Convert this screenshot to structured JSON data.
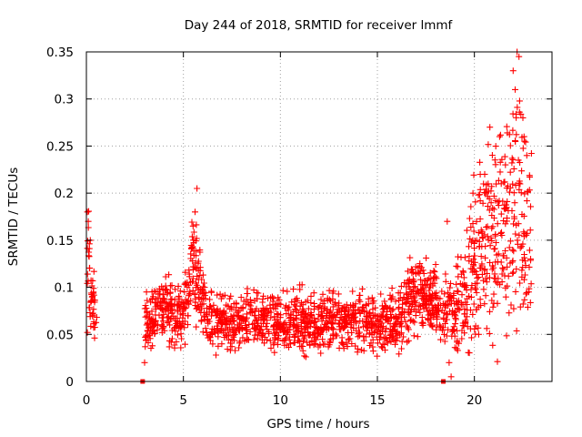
{
  "chart_data": {
    "type": "scatter",
    "title": "Day 244 of 2018, SRMTID for receiver lmmf",
    "xlabel": "GPS time / hours",
    "ylabel": "SRMTID / TECUs",
    "xlim": [
      0,
      24
    ],
    "ylim": [
      0,
      0.35
    ],
    "xticks": [
      0,
      5,
      10,
      15,
      20
    ],
    "yticks": [
      0,
      0.05,
      0.1,
      0.15,
      0.2,
      0.25,
      0.3,
      0.35
    ],
    "xtick_labels": [
      "0",
      "5",
      "10",
      "15",
      "20"
    ],
    "ytick_labels": [
      "0",
      "0.05",
      "0.1",
      "0.15",
      "0.2",
      "0.25",
      "0.3",
      "0.35"
    ],
    "grid": true,
    "marker": "+",
    "color": "#ff0000",
    "zero_markers_x": [
      2.9,
      18.4
    ],
    "series": [
      {
        "name": "SRMTID",
        "profile": [
          [
            0.0,
            0.08
          ],
          [
            0.1,
            0.13
          ],
          [
            0.2,
            0.09
          ],
          [
            0.5,
            0.07
          ],
          [
            3.0,
            0.06
          ],
          [
            3.5,
            0.07
          ],
          [
            4.0,
            0.08
          ],
          [
            4.5,
            0.07
          ],
          [
            5.0,
            0.07
          ],
          [
            5.5,
            0.12
          ],
          [
            5.8,
            0.11
          ],
          [
            6.2,
            0.065
          ],
          [
            7.0,
            0.06
          ],
          [
            8.0,
            0.065
          ],
          [
            9.0,
            0.065
          ],
          [
            10.0,
            0.06
          ],
          [
            11.0,
            0.065
          ],
          [
            12.0,
            0.06
          ],
          [
            13.0,
            0.065
          ],
          [
            14.0,
            0.065
          ],
          [
            15.0,
            0.06
          ],
          [
            15.8,
            0.065
          ],
          [
            16.5,
            0.08
          ],
          [
            17.0,
            0.1
          ],
          [
            17.5,
            0.09
          ],
          [
            18.0,
            0.08
          ],
          [
            18.4,
            0.07
          ],
          [
            18.7,
            0.08
          ],
          [
            19.0,
            0.07
          ],
          [
            19.5,
            0.09
          ],
          [
            20.0,
            0.12
          ],
          [
            20.5,
            0.15
          ],
          [
            21.0,
            0.16
          ],
          [
            21.5,
            0.15
          ],
          [
            22.0,
            0.2
          ],
          [
            22.5,
            0.18
          ],
          [
            22.9,
            0.15
          ]
        ],
        "spikes": [
          {
            "x": 0.05,
            "y": 0.18
          },
          {
            "x": 0.1,
            "y": 0.17
          },
          {
            "x": 0.2,
            "y": 0.15
          },
          {
            "x": 5.6,
            "y": 0.18
          },
          {
            "x": 5.7,
            "y": 0.205
          },
          {
            "x": 5.5,
            "y": 0.165
          },
          {
            "x": 18.6,
            "y": 0.17
          },
          {
            "x": 18.7,
            "y": 0.02
          },
          {
            "x": 18.8,
            "y": 0.005
          },
          {
            "x": 20.8,
            "y": 0.27
          },
          {
            "x": 21.3,
            "y": 0.26
          },
          {
            "x": 22.0,
            "y": 0.33
          },
          {
            "x": 22.2,
            "y": 0.35
          },
          {
            "x": 22.3,
            "y": 0.345
          },
          {
            "x": 22.1,
            "y": 0.31
          },
          {
            "x": 22.5,
            "y": 0.28
          },
          {
            "x": 22.7,
            "y": 0.24
          },
          {
            "x": 22.9,
            "y": 0.13
          },
          {
            "x": 22.8,
            "y": 0.095
          },
          {
            "x": 21.6,
            "y": 0.23
          },
          {
            "x": 20.3,
            "y": 0.22
          },
          {
            "x": 3.0,
            "y": 0.02
          },
          {
            "x": 3.1,
            "y": 0.095
          }
        ]
      }
    ]
  }
}
